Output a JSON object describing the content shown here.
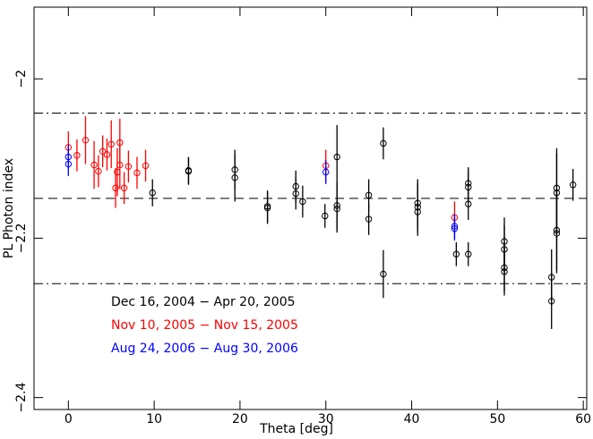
{
  "chart_data": {
    "type": "scatter",
    "xlabel": "Theta [deg]",
    "ylabel": "PL Photon index",
    "xlim": [
      -4,
      60.4
    ],
    "ylim": [
      -2.415,
      -1.91
    ],
    "xticks": [
      0,
      10,
      20,
      30,
      40,
      50,
      60
    ],
    "yticks": [
      {
        "value": -2.4,
        "label": "−2.4"
      },
      {
        "value": -2.2,
        "label": "−2.2"
      },
      {
        "value": -2,
        "label": "−2"
      }
    ],
    "reference_lines": [
      {
        "value": -2.043,
        "style": "dashdot"
      },
      {
        "value": -2.15,
        "style": "dashed"
      },
      {
        "value": -2.257,
        "style": "dashdot"
      }
    ],
    "series": [
      {
        "name": "Dec 16, 2004 − Apr 20, 2005",
        "color": "#000000",
        "x": [
          9.8,
          14,
          14,
          19.4,
          19.4,
          23.2,
          23.2,
          26.5,
          26.5,
          27.3,
          29.9,
          31.3,
          31.3,
          31.3,
          35,
          35,
          36.7,
          36.7,
          40.7,
          40.7,
          40.7,
          45.2,
          46.6,
          46.6,
          46.6,
          46.6,
          50.8,
          50.8,
          50.8,
          50.8,
          56.3,
          56.3,
          56.9,
          56.9,
          56.9,
          56.9,
          58.8
        ],
        "y": [
          -2.143,
          -2.115,
          -2.116,
          -2.114,
          -2.124,
          -2.16,
          -2.162,
          -2.135,
          -2.144,
          -2.154,
          -2.172,
          -2.098,
          -2.159,
          -2.163,
          -2.146,
          -2.176,
          -2.081,
          -2.245,
          -2.156,
          -2.161,
          -2.167,
          -2.22,
          -2.131,
          -2.136,
          -2.157,
          -2.22,
          -2.204,
          -2.214,
          -2.237,
          -2.242,
          -2.249,
          -2.279,
          -2.137,
          -2.143,
          -2.19,
          -2.194,
          -2.133
        ],
        "yerr": [
          0.017,
          0.017,
          0.017,
          0.025,
          0.03,
          0.02,
          0.02,
          0.02,
          0.02,
          0.02,
          0.015,
          0.04,
          0.03,
          0.03,
          0.02,
          0.02,
          0.02,
          0.03,
          0.03,
          0.03,
          0.03,
          0.015,
          0.02,
          0.02,
          0.02,
          0.015,
          0.03,
          0.03,
          0.03,
          0.03,
          0.035,
          0.035,
          0.05,
          0.05,
          0.05,
          0.05,
          0.02
        ]
      },
      {
        "name": "Nov 10, 2005 − Nov 15, 2005",
        "color": "#ff0000",
        "x": [
          0,
          1,
          2,
          3,
          3.5,
          4,
          4.5,
          5,
          5.5,
          5.7,
          6,
          6,
          6.5,
          7,
          8,
          9,
          30,
          45
        ],
        "y": [
          -2.086,
          -2.096,
          -2.077,
          -2.108,
          -2.116,
          -2.091,
          -2.095,
          -2.082,
          -2.137,
          -2.117,
          -2.108,
          -2.08,
          -2.137,
          -2.11,
          -2.118,
          -2.109,
          -2.109,
          -2.174
        ],
        "yerr": [
          0.02,
          0.02,
          0.03,
          0.03,
          0.02,
          0.02,
          0.02,
          0.03,
          0.025,
          0.03,
          0.03,
          0.03,
          0.02,
          0.02,
          0.02,
          0.02,
          0.02,
          0.02
        ]
      },
      {
        "name": "Aug 24, 2006 − Aug 30, 2006",
        "color": "#0000ff",
        "x": [
          0,
          0,
          30,
          45,
          45
        ],
        "y": [
          -2.098,
          -2.107,
          -2.117,
          -2.185,
          -2.188
        ],
        "yerr": [
          0.015,
          0.015,
          0.015,
          0.015,
          0.015
        ]
      }
    ]
  }
}
